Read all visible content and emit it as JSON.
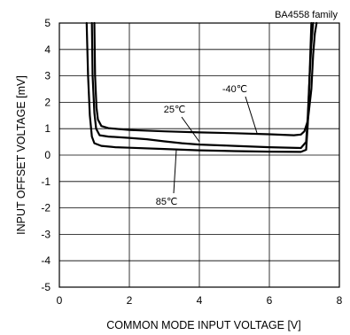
{
  "chart_data": {
    "type": "line",
    "annotation_top_right": "BA4558  family",
    "xlabel": "COMMON MODE INPUT VOLTAGE [V]",
    "ylabel": "INPUT OFFSET VOLTAGE [mV]",
    "xlim": [
      0,
      8
    ],
    "ylim": [
      -5,
      5
    ],
    "xticks": [
      "0",
      "2",
      "4",
      "6",
      "8"
    ],
    "yticks": [
      "5",
      "4",
      "3",
      "2",
      "1",
      "0",
      "-1",
      "-2",
      "-3",
      "-4",
      "-5"
    ],
    "grid": true,
    "series": [
      {
        "name": "-40℃",
        "x": [
          1.0,
          1.02,
          1.06,
          1.1,
          1.2,
          1.4,
          2.0,
          3.0,
          4.0,
          5.0,
          6.0,
          6.7,
          6.9,
          7.0,
          7.1,
          7.2,
          7.25,
          7.3,
          7.35
        ],
        "y": [
          5.0,
          3.0,
          1.8,
          1.35,
          1.1,
          1.02,
          0.95,
          0.9,
          0.86,
          0.83,
          0.79,
          0.75,
          0.78,
          0.9,
          1.3,
          2.5,
          3.8,
          4.6,
          5.0
        ]
      },
      {
        "name": "25℃",
        "x": [
          0.93,
          0.95,
          1.0,
          1.05,
          1.15,
          1.4,
          2.0,
          2.5,
          3.0,
          3.5,
          4.0,
          5.0,
          6.0,
          6.9,
          7.05,
          7.1,
          7.15,
          7.2,
          7.25
        ],
        "y": [
          5.0,
          3.0,
          1.6,
          1.0,
          0.75,
          0.7,
          0.65,
          0.6,
          0.52,
          0.45,
          0.4,
          0.35,
          0.3,
          0.27,
          0.5,
          1.5,
          3.0,
          4.2,
          5.0
        ]
      },
      {
        "name": "85℃",
        "x": [
          0.78,
          0.82,
          0.87,
          0.93,
          1.0,
          1.2,
          1.6,
          2.0,
          3.0,
          4.0,
          5.0,
          6.0,
          6.9,
          7.05,
          7.1,
          7.15,
          7.2
        ],
        "y": [
          5.0,
          3.0,
          1.5,
          0.7,
          0.45,
          0.35,
          0.3,
          0.28,
          0.23,
          0.18,
          0.15,
          0.13,
          0.12,
          0.2,
          1.2,
          3.0,
          5.0
        ]
      }
    ]
  }
}
